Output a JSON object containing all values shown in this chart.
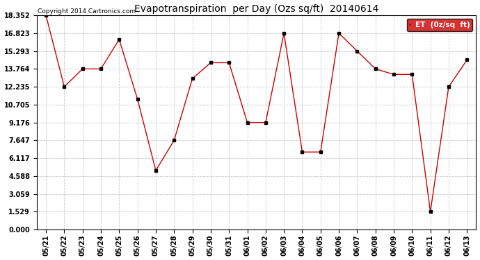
{
  "title": "Evapotranspiration  per Day (Ozs sq/ft)  20140614",
  "copyright": "Copyright 2014 Cartronics.com",
  "legend_label": "ET  (0z/sq  ft)",
  "x_labels": [
    "05/21",
    "05/22",
    "05/23",
    "05/24",
    "05/25",
    "05/26",
    "05/27",
    "05/28",
    "05/29",
    "05/30",
    "05/31",
    "06/01",
    "06/02",
    "06/03",
    "06/04",
    "06/05",
    "06/06",
    "06/07",
    "06/08",
    "06/09",
    "06/10",
    "06/11",
    "06/12",
    "06/13"
  ],
  "y_values": [
    18.352,
    12.235,
    13.764,
    13.764,
    16.294,
    11.176,
    5.059,
    7.647,
    12.941,
    14.294,
    14.294,
    9.176,
    9.176,
    16.823,
    6.647,
    6.647,
    16.823,
    15.293,
    13.764,
    13.294,
    13.294,
    1.529,
    12.235,
    14.529
  ],
  "y_ticks": [
    0.0,
    1.529,
    3.059,
    4.588,
    6.117,
    7.647,
    9.176,
    10.705,
    12.235,
    13.764,
    15.293,
    16.823,
    18.352
  ],
  "line_color": "#cc0000",
  "marker_color": "#000000",
  "grid_color": "#c8c8c8",
  "background_color": "#ffffff",
  "legend_bg": "#cc0000",
  "legend_text_color": "#ffffff",
  "title_fontsize": 10,
  "copyright_fontsize": 6.5,
  "tick_fontsize": 7,
  "legend_fontsize": 7.5,
  "fig_bg": "#ffffff"
}
